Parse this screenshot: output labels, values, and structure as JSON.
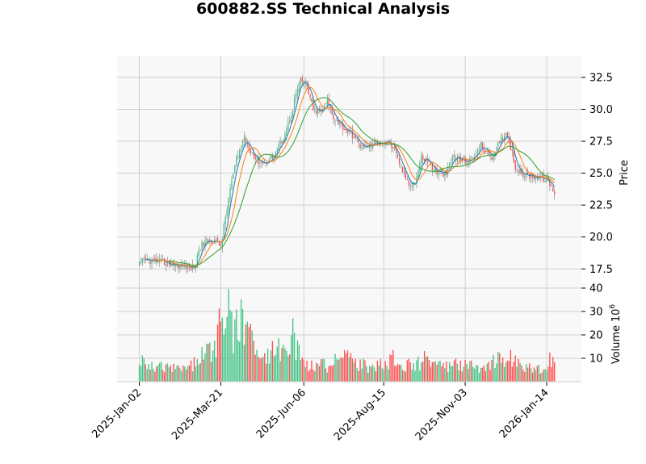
{
  "chart_data": {
    "type": "candlestick",
    "title": "600882.SS Technical Analysis",
    "price_panel": {
      "ylabel": "Price",
      "ylim": [
        16.0,
        34.2
      ],
      "y_ticks": [
        17.5,
        20.0,
        22.5,
        25.0,
        27.5,
        30.0,
        32.5
      ],
      "y_tick_labels": [
        "17.5",
        "20.0",
        "22.5",
        "25.0",
        "27.5",
        "30.0",
        "32.5"
      ],
      "grid": true,
      "axis_side": "right",
      "moving_averages": [
        {
          "color": "#1f77b4"
        },
        {
          "color": "#ff7f0e"
        },
        {
          "color": "#2ca02c"
        }
      ]
    },
    "volume_panel": {
      "ylabel": "Volume",
      "scale_label": "10^6",
      "ylim": [
        0,
        40
      ],
      "y_ticks": [
        10,
        20,
        30,
        40
      ],
      "y_tick_labels": [
        "10",
        "20",
        "30",
        "40"
      ],
      "grid": true,
      "axis_side": "right"
    },
    "x_axis": {
      "tick_labels": [
        "2025-Jan-02",
        "2025-Mar-21",
        "2025-Jun-06",
        "2025-Aug-15",
        "2025-Nov-03",
        "2026-Jan-14"
      ],
      "tick_bar_index": [
        0,
        52,
        105,
        156,
        208,
        260
      ],
      "bar_count": 266
    },
    "colors": {
      "up": "#45c486",
      "down": "#ff5050",
      "plot_bg": "#f8f8f8",
      "grid": "#cfcfcf"
    },
    "close_keypoints": [
      [
        0,
        17.8
      ],
      [
        3,
        18.2
      ],
      [
        10,
        18.1
      ],
      [
        20,
        17.9
      ],
      [
        34,
        17.6
      ],
      [
        36,
        17.8
      ],
      [
        38,
        19.1
      ],
      [
        42,
        19.6
      ],
      [
        48,
        19.8
      ],
      [
        52,
        19.3
      ],
      [
        55,
        21.5
      ],
      [
        58,
        23.8
      ],
      [
        62,
        26.0
      ],
      [
        67,
        27.8
      ],
      [
        71,
        26.8
      ],
      [
        75,
        26.0
      ],
      [
        80,
        25.8
      ],
      [
        86,
        26.4
      ],
      [
        92,
        27.8
      ],
      [
        97,
        29.6
      ],
      [
        100,
        31.2
      ],
      [
        103,
        32.2
      ],
      [
        107,
        31.8
      ],
      [
        111,
        29.9
      ],
      [
        116,
        29.8
      ],
      [
        120,
        30.6
      ],
      [
        124,
        29.4
      ],
      [
        130,
        28.6
      ],
      [
        136,
        28.0
      ],
      [
        142,
        27.0
      ],
      [
        148,
        27.2
      ],
      [
        154,
        27.5
      ],
      [
        160,
        27.4
      ],
      [
        164,
        26.4
      ],
      [
        168,
        25.2
      ],
      [
        172,
        24.2
      ],
      [
        176,
        24.3
      ],
      [
        180,
        26.2
      ],
      [
        184,
        26.0
      ],
      [
        188,
        25.2
      ],
      [
        192,
        25.0
      ],
      [
        196,
        24.9
      ],
      [
        200,
        26.3
      ],
      [
        206,
        26.0
      ],
      [
        210,
        25.9
      ],
      [
        214,
        26.4
      ],
      [
        218,
        27.2
      ],
      [
        222,
        26.6
      ],
      [
        226,
        26.2
      ],
      [
        230,
        27.5
      ],
      [
        234,
        28.2
      ],
      [
        236,
        27.6
      ],
      [
        240,
        25.5
      ],
      [
        244,
        24.9
      ],
      [
        250,
        24.8
      ],
      [
        256,
        24.7
      ],
      [
        260,
        24.4
      ],
      [
        263,
        24.0
      ],
      [
        265,
        23.2
      ]
    ],
    "volume_keypoints": [
      [
        0,
        9
      ],
      [
        8,
        7
      ],
      [
        18,
        6
      ],
      [
        30,
        6
      ],
      [
        36,
        9
      ],
      [
        42,
        12
      ],
      [
        48,
        15
      ],
      [
        52,
        26
      ],
      [
        56,
        33
      ],
      [
        60,
        20
      ],
      [
        64,
        29
      ],
      [
        68,
        22
      ],
      [
        74,
        17
      ],
      [
        80,
        12
      ],
      [
        86,
        14
      ],
      [
        92,
        15
      ],
      [
        98,
        21
      ],
      [
        102,
        12
      ],
      [
        108,
        8
      ],
      [
        120,
        7
      ],
      [
        130,
        11
      ],
      [
        140,
        8
      ],
      [
        150,
        6
      ],
      [
        156,
        8
      ],
      [
        162,
        11
      ],
      [
        168,
        8
      ],
      [
        176,
        7
      ],
      [
        182,
        10
      ],
      [
        190,
        7
      ],
      [
        196,
        7
      ],
      [
        202,
        8
      ],
      [
        210,
        7
      ],
      [
        218,
        6
      ],
      [
        226,
        9
      ],
      [
        232,
        10
      ],
      [
        238,
        11
      ],
      [
        244,
        7
      ],
      [
        252,
        6
      ],
      [
        258,
        5
      ],
      [
        262,
        10
      ],
      [
        265,
        12
      ]
    ]
  }
}
